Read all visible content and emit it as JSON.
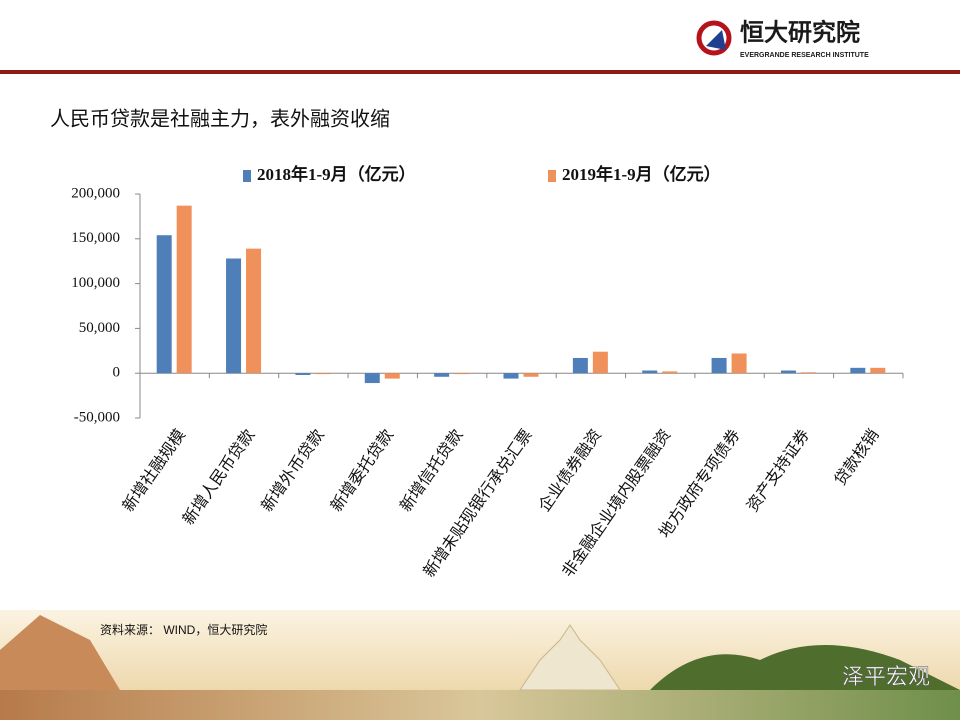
{
  "header": {
    "brand": "恒大研究院",
    "brand_en": "EVERGRANDE RESEARCH INSTITUTE"
  },
  "slide_title": "人民币贷款是社融主力，表外融资收缩",
  "source": "资料来源： WIND，恒大研究院",
  "watermark": "泽平宏观",
  "chart_data": {
    "type": "bar",
    "categories": [
      "新增社融规模",
      "新增人民币贷款",
      "新增外币贷款",
      "新增委托贷款",
      "新增信托贷款",
      "新增未贴现银行承兑汇票",
      "企业债券融资",
      "非金融企业境内股票融资",
      "地方政府专项债券",
      "资产支持证券",
      "贷款核销"
    ],
    "series": [
      {
        "name": "2018年1-9月（亿元）",
        "color": "#4f7fb8",
        "values": [
          154000,
          128000,
          -2000,
          -11000,
          -4000,
          -6000,
          17000,
          3000,
          17000,
          3000,
          6000
        ]
      },
      {
        "name": "2019年1-9月（亿元）",
        "color": "#f0905a",
        "values": [
          187000,
          139000,
          -1000,
          -6000,
          -1000,
          -4000,
          24000,
          2000,
          22000,
          1000,
          6000
        ]
      }
    ],
    "ylim": [
      -50000,
      200000
    ],
    "yticks": [
      {
        "value": -50000,
        "label": "-50,000"
      },
      0,
      {
        "value": 50000,
        "label": "50,000"
      },
      {
        "value": 100000,
        "label": "100,000"
      },
      {
        "value": 150000,
        "label": "150,000"
      },
      {
        "value": 200000,
        "label": "200,000"
      }
    ],
    "legend": "top"
  }
}
